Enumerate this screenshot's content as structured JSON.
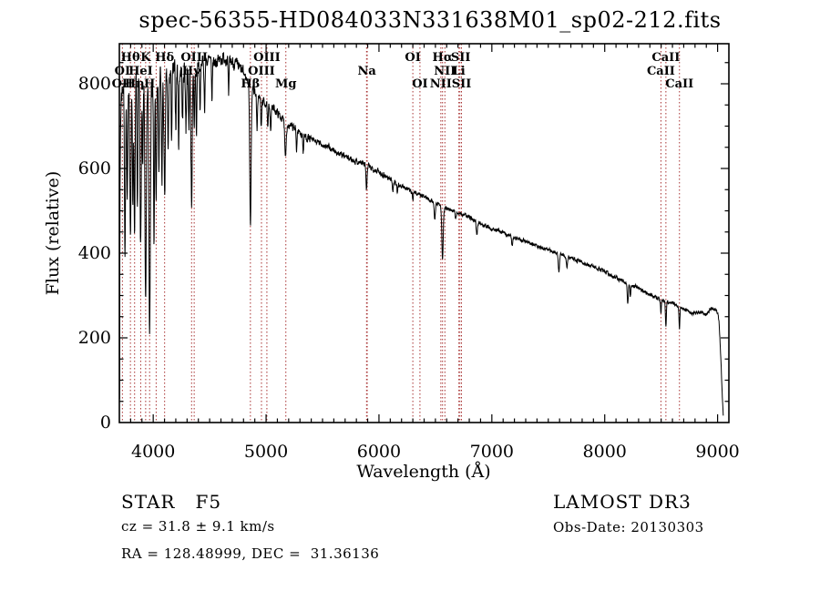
{
  "title": "spec-56355-HD084033N331638M01_sp02-212.fits",
  "annotations": {
    "class_line": "STAR   F5",
    "cz_line": "cz = 31.8 ± 9.1 km/s",
    "radec_line": "RA = 128.48999, DEC =  31.36136",
    "survey": "LAMOST DR3",
    "obsdate_line": "Obs-Date: 20130303"
  },
  "chart_data": {
    "type": "line",
    "title": "spec-56355-HD084033N331638M01_sp02-212.fits",
    "xlabel": "Wavelength (Å)",
    "ylabel": "Flux (relative)",
    "xlim": [
      3700,
      9100
    ],
    "ylim": [
      0,
      894
    ],
    "xticks": [
      4000,
      5000,
      6000,
      7000,
      8000,
      9000
    ],
    "yticks": [
      0,
      200,
      400,
      600,
      800
    ],
    "x_minor_step": 100,
    "y_minor_step": 50,
    "grid": false,
    "line_color": "#000000",
    "marker_line_color": "#a83232",
    "series_name": "spectrum",
    "marker_lines": [
      3727,
      3798,
      3835,
      3889,
      3933,
      3968,
      4026,
      4101,
      4340,
      4363,
      4861,
      4959,
      5007,
      5175,
      5890,
      5896,
      6300,
      6363,
      6548,
      6563,
      6584,
      6708,
      6717,
      6731,
      8498,
      8542,
      8662
    ],
    "line_labels": [
      {
        "text": "Hθ",
        "row": 1,
        "wavelength": 3798
      },
      {
        "text": "K",
        "row": 1,
        "wavelength": 3933
      },
      {
        "text": "Hδ",
        "row": 1,
        "wavelength": 4101
      },
      {
        "text": "OIII",
        "row": 1,
        "wavelength": 4363
      },
      {
        "text": "OIII",
        "row": 1,
        "wavelength": 5007
      },
      {
        "text": "OI",
        "row": 1,
        "wavelength": 6300
      },
      {
        "text": "Hα",
        "row": 1,
        "wavelength": 6563
      },
      {
        "text": "SII",
        "row": 1,
        "wavelength": 6724
      },
      {
        "text": "CaII",
        "row": 1,
        "wavelength": 8542
      },
      {
        "text": "OI",
        "row": 2,
        "wavelength": 3727
      },
      {
        "text": "HeI",
        "row": 2,
        "wavelength": 3889
      },
      {
        "text": "Hγ",
        "row": 2,
        "wavelength": 4340
      },
      {
        "text": "OIII",
        "row": 2,
        "wavelength": 4959
      },
      {
        "text": "Na",
        "row": 2,
        "wavelength": 5893
      },
      {
        "text": "NII",
        "row": 2,
        "wavelength": 6584
      },
      {
        "text": "Li",
        "row": 2,
        "wavelength": 6708
      },
      {
        "text": "CaII",
        "row": 2,
        "wavelength": 8498
      },
      {
        "text": "OII",
        "row": 3,
        "wavelength": 3727
      },
      {
        "text": "Hη",
        "row": 3,
        "wavelength": 3835
      },
      {
        "text": "H",
        "row": 3,
        "wavelength": 3968
      },
      {
        "text": "Hβ",
        "row": 3,
        "wavelength": 4861
      },
      {
        "text": "Mg",
        "row": 3,
        "wavelength": 5175
      },
      {
        "text": "OI",
        "row": 3,
        "wavelength": 6363
      },
      {
        "text": "NII",
        "row": 3,
        "wavelength": 6548
      },
      {
        "text": "SII",
        "row": 3,
        "wavelength": 6731
      },
      {
        "text": "CaII",
        "row": 3,
        "wavelength": 8662
      }
    ],
    "continuum": [
      [
        3700,
        430
      ],
      [
        3702,
        90
      ],
      [
        3705,
        500
      ],
      [
        3710,
        680
      ],
      [
        3715,
        760
      ],
      [
        3725,
        790
      ],
      [
        3740,
        800
      ],
      [
        3760,
        790
      ],
      [
        3780,
        800
      ],
      [
        3800,
        805
      ],
      [
        3825,
        800
      ],
      [
        3850,
        805
      ],
      [
        3875,
        800
      ],
      [
        3900,
        805
      ],
      [
        3925,
        800
      ],
      [
        3950,
        795
      ],
      [
        3975,
        790
      ],
      [
        4000,
        795
      ],
      [
        4030,
        805
      ],
      [
        4060,
        810
      ],
      [
        4090,
        815
      ],
      [
        4120,
        815
      ],
      [
        4150,
        820
      ],
      [
        4200,
        830
      ],
      [
        4250,
        835
      ],
      [
        4300,
        835
      ],
      [
        4350,
        840
      ],
      [
        4400,
        848
      ],
      [
        4450,
        852
      ],
      [
        4500,
        856
      ],
      [
        4550,
        852
      ],
      [
        4600,
        858
      ],
      [
        4640,
        862
      ],
      [
        4680,
        855
      ],
      [
        4720,
        848
      ],
      [
        4760,
        838
      ],
      [
        4800,
        825
      ],
      [
        4840,
        805
      ],
      [
        4880,
        788
      ],
      [
        4920,
        775
      ],
      [
        4960,
        762
      ],
      [
        5000,
        752
      ],
      [
        5040,
        745
      ],
      [
        5080,
        738
      ],
      [
        5120,
        725
      ],
      [
        5160,
        712
      ],
      [
        5200,
        700
      ],
      [
        5250,
        695
      ],
      [
        5300,
        685
      ],
      [
        5350,
        675
      ],
      [
        5400,
        668
      ],
      [
        5450,
        662
      ],
      [
        5500,
        656
      ],
      [
        5550,
        650
      ],
      [
        5600,
        642
      ],
      [
        5650,
        634
      ],
      [
        5700,
        628
      ],
      [
        5750,
        622
      ],
      [
        5800,
        617
      ],
      [
        5850,
        613
      ],
      [
        5900,
        606
      ],
      [
        5950,
        600
      ],
      [
        6000,
        592
      ],
      [
        6050,
        584
      ],
      [
        6100,
        575
      ],
      [
        6150,
        566
      ],
      [
        6200,
        558
      ],
      [
        6250,
        551
      ],
      [
        6300,
        545
      ],
      [
        6350,
        540
      ],
      [
        6400,
        534
      ],
      [
        6450,
        527
      ],
      [
        6500,
        520
      ],
      [
        6550,
        512
      ],
      [
        6600,
        505
      ],
      [
        6650,
        500
      ],
      [
        6700,
        496
      ],
      [
        6750,
        490
      ],
      [
        6800,
        485
      ],
      [
        6850,
        478
      ],
      [
        6900,
        470
      ],
      [
        6950,
        465
      ],
      [
        7000,
        458
      ],
      [
        7100,
        448
      ],
      [
        7200,
        438
      ],
      [
        7300,
        428
      ],
      [
        7400,
        418
      ],
      [
        7500,
        408
      ],
      [
        7600,
        398
      ],
      [
        7700,
        388
      ],
      [
        7800,
        378
      ],
      [
        7900,
        368
      ],
      [
        8000,
        356
      ],
      [
        8100,
        342
      ],
      [
        8200,
        330
      ],
      [
        8300,
        318
      ],
      [
        8400,
        302
      ],
      [
        8500,
        290
      ],
      [
        8550,
        285
      ],
      [
        8600,
        282
      ],
      [
        8650,
        276
      ],
      [
        8700,
        268
      ],
      [
        8750,
        262
      ],
      [
        8800,
        258
      ],
      [
        8850,
        260
      ],
      [
        8900,
        256
      ],
      [
        8940,
        270
      ],
      [
        8970,
        266
      ],
      [
        9000,
        262
      ],
      [
        9015,
        230
      ],
      [
        9030,
        140
      ],
      [
        9042,
        60
      ],
      [
        9050,
        15
      ]
    ],
    "absorption_features": [
      [
        3750,
        380,
        5
      ],
      [
        3770,
        300,
        4
      ],
      [
        3798,
        380,
        5
      ],
      [
        3820,
        280,
        4
      ],
      [
        3835,
        360,
        5
      ],
      [
        3860,
        300,
        4
      ],
      [
        3889,
        390,
        5
      ],
      [
        3907,
        220,
        4
      ],
      [
        3933,
        530,
        6
      ],
      [
        3968,
        570,
        6
      ],
      [
        4007,
        400,
        4
      ],
      [
        4026,
        300,
        4
      ],
      [
        4050,
        220,
        4
      ],
      [
        4077,
        250,
        4
      ],
      [
        4101,
        270,
        6
      ],
      [
        4132,
        190,
        4
      ],
      [
        4163,
        140,
        4
      ],
      [
        4200,
        120,
        4
      ],
      [
        4226,
        170,
        4
      ],
      [
        4260,
        130,
        4
      ],
      [
        4290,
        140,
        4
      ],
      [
        4315,
        140,
        4
      ],
      [
        4340,
        310,
        6
      ],
      [
        4363,
        150,
        4
      ],
      [
        4383,
        170,
        4
      ],
      [
        4415,
        120,
        4
      ],
      [
        4455,
        110,
        4
      ],
      [
        4520,
        90,
        4
      ],
      [
        4668,
        90,
        4
      ],
      [
        4861,
        330,
        6
      ],
      [
        4920,
        90,
        4
      ],
      [
        4957,
        70,
        4
      ],
      [
        5015,
        60,
        4
      ],
      [
        5041,
        50,
        4
      ],
      [
        5172,
        75,
        6
      ],
      [
        5270,
        45,
        4
      ],
      [
        5329,
        40,
        4
      ],
      [
        5890,
        58,
        5
      ],
      [
        6122,
        25,
        4
      ],
      [
        6162,
        20,
        4
      ],
      [
        6300,
        22,
        3
      ],
      [
        6494,
        45,
        5
      ],
      [
        6563,
        125,
        6
      ],
      [
        6680,
        20,
        4
      ],
      [
        6867,
        35,
        5
      ],
      [
        7180,
        25,
        5
      ],
      [
        7594,
        40,
        6
      ],
      [
        7665,
        25,
        5
      ],
      [
        8204,
        45,
        5
      ],
      [
        8227,
        30,
        4
      ],
      [
        8498,
        28,
        4
      ],
      [
        8542,
        60,
        4
      ],
      [
        8662,
        52,
        4
      ]
    ],
    "noise_regions": [
      [
        3700,
        4350,
        48
      ],
      [
        4350,
        4800,
        24
      ],
      [
        4800,
        5400,
        15
      ],
      [
        5400,
        6200,
        11
      ],
      [
        6200,
        7000,
        8
      ],
      [
        7000,
        8000,
        7
      ],
      [
        8000,
        9055,
        7
      ]
    ]
  }
}
